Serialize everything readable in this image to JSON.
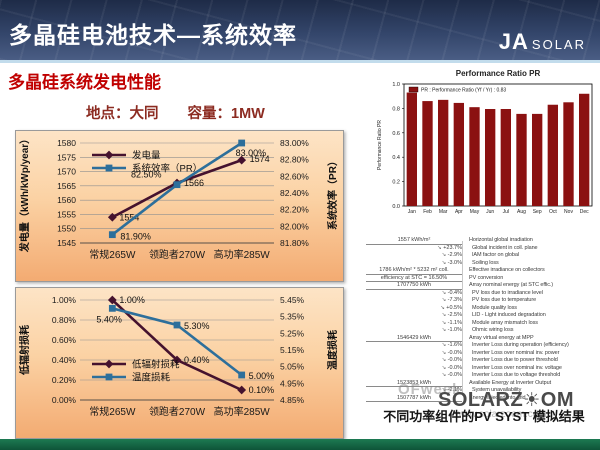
{
  "header": {
    "title": "多晶硅电池技术—系统效率",
    "logo_ja": "JA",
    "logo_solar": "SOLAR"
  },
  "subtitle": "多晶硅系统发电性能",
  "site_line": "地点：大同　　容量：1MW",
  "caption": "不同功率组件的PV SYST 模拟结果",
  "watermarks": {
    "ofweek": "OFweek",
    "sz_left": "SOLARZ",
    "sz_sun": "☀",
    "sz_right": "OM",
    "url": "www.solarzoom.com"
  },
  "chart_data": [
    {
      "id": "gen",
      "type": "line",
      "categories": [
        "常规265W",
        "领跑者270W",
        "高功率285W"
      ],
      "series": [
        {
          "name": "发电量",
          "axis": "left",
          "values": [
            1554,
            1566,
            1574
          ],
          "labels": [
            "1554",
            "1566",
            "1574"
          ],
          "color": "#45122e",
          "marker": "diamond",
          "label_offsets": [
            [
              7,
              3
            ],
            [
              7,
              3
            ],
            [
              8,
              2
            ]
          ]
        },
        {
          "name": "系统效率（PR）",
          "axis": "right",
          "values": [
            81.9,
            82.5,
            83.0
          ],
          "labels": [
            "81.90%",
            "82.50%",
            "83.00%"
          ],
          "color": "#2d6f9b",
          "marker": "square",
          "label_offsets": [
            [
              8,
              5
            ],
            [
              -46,
              -7
            ],
            [
              -6,
              13
            ]
          ]
        }
      ],
      "left_axis": {
        "label": "发电量（kWh/kWp/year）",
        "min": 1545,
        "max": 1580,
        "step": 5,
        "format": "int"
      },
      "right_axis": {
        "label": "系统效率（PR）",
        "min": 81.8,
        "max": 83.0,
        "step": 0.2,
        "format": "pct2"
      },
      "legend_pos": [
        76,
        24
      ],
      "grid": true
    },
    {
      "id": "loss",
      "type": "line",
      "categories": [
        "常规265W",
        "领跑者270W",
        "高功率285W"
      ],
      "series": [
        {
          "name": "低辐射损耗",
          "axis": "left",
          "values": [
            1.0,
            0.4,
            0.1
          ],
          "labels": [
            "1.00%",
            "0.40%",
            "0.10%"
          ],
          "color": "#45122e",
          "marker": "diamond",
          "label_offsets": [
            [
              7,
              3
            ],
            [
              7,
              3
            ],
            [
              7,
              3
            ]
          ]
        },
        {
          "name": "温度损耗",
          "axis": "right",
          "values": [
            5.4,
            5.3,
            5.0
          ],
          "labels": [
            "5.40%",
            "5.30%",
            "5.00%"
          ],
          "color": "#2d6f9b",
          "marker": "square",
          "label_offsets": [
            [
              -16,
              14
            ],
            [
              7,
              4
            ],
            [
              7,
              4
            ]
          ]
        }
      ],
      "left_axis": {
        "label": "低辐射损耗",
        "min": 0.0,
        "max": 1.0,
        "step": 0.2,
        "format": "pct2"
      },
      "right_axis": {
        "label": "温度损耗",
        "min": 4.85,
        "max": 5.45,
        "step": 0.1,
        "format": "pct2"
      },
      "legend_pos": [
        76,
        76
      ],
      "grid": true
    },
    {
      "id": "pr",
      "type": "bar",
      "title": "Performance Ratio PR",
      "legend": "PR : Performance Ratio (Yf / Yr) :  0.83",
      "categories": [
        "Jan",
        "Feb",
        "Mar",
        "Apr",
        "May",
        "Jun",
        "Jul",
        "Aug",
        "Sep",
        "Oct",
        "Nov",
        "Dec"
      ],
      "values": [
        0.93,
        0.86,
        0.87,
        0.845,
        0.81,
        0.795,
        0.795,
        0.755,
        0.755,
        0.83,
        0.85,
        0.92
      ],
      "ylabel": "Performance Ratio PR",
      "ylim": [
        0,
        1.0
      ],
      "ystep": 0.2,
      "bar_color": "#8b1111"
    }
  ],
  "loss_diagram": {
    "rows": [
      {
        "t": "main",
        "v": "1557 kWh/m²",
        "d": "Horizontal global irradiation"
      },
      {
        "t": "loss",
        "v": "+23.7%",
        "d": "Global incident in coll. plane"
      },
      {
        "t": "loss",
        "v": "-2.9%",
        "d": "IAM factor on global"
      },
      {
        "t": "loss",
        "v": "-3.0%",
        "d": "Soiling loss"
      },
      {
        "t": "main2",
        "v": "1786 kWh/m² * 5232 m² coll.",
        "d": "Effective irradiance on collectors"
      },
      {
        "t": "main2",
        "v": "efficiency at STC = 16.50%",
        "d": "PV conversion"
      },
      {
        "t": "main",
        "v": "1707750 kWh",
        "d": "Array nominal energy (at STC effic.)"
      },
      {
        "t": "loss",
        "v": "-0.4%",
        "d": "PV loss due to irradiance level"
      },
      {
        "t": "loss",
        "v": "-7.3%",
        "d": "PV loss due to temperature"
      },
      {
        "t": "loss",
        "v": "+0.5%",
        "d": "Module quality loss"
      },
      {
        "t": "loss",
        "v": "-2.5%",
        "d": "LID - Light induced degradation"
      },
      {
        "t": "loss",
        "v": "-1.1%",
        "d": "Module array mismatch loss"
      },
      {
        "t": "loss",
        "v": "-1.0%",
        "d": "Ohmic wiring loss"
      },
      {
        "t": "main",
        "v": "1546429 kWh",
        "d": "Array virtual energy at MPP"
      },
      {
        "t": "loss",
        "v": "-1.6%",
        "d": "Inverter Loss during operation (efficiency)"
      },
      {
        "t": "loss",
        "v": "-0.0%",
        "d": "Inverter Loss over nominal inv. power"
      },
      {
        "t": "loss",
        "v": "-0.0%",
        "d": "Inverter Loss due to power threshold"
      },
      {
        "t": "loss",
        "v": "-0.0%",
        "d": "Inverter Loss over nominal inv. voltage"
      },
      {
        "t": "loss",
        "v": "-0.0%",
        "d": "Inverter Loss due to voltage threshold"
      },
      {
        "t": "main",
        "v": "1523853 kWh",
        "d": "Available Energy at Inverter Output"
      },
      {
        "t": "loss",
        "v": "-2.1%",
        "d": "System unavailability"
      },
      {
        "t": "main",
        "v": "1507787 kWh",
        "d": "Energy injected into grid"
      }
    ]
  }
}
